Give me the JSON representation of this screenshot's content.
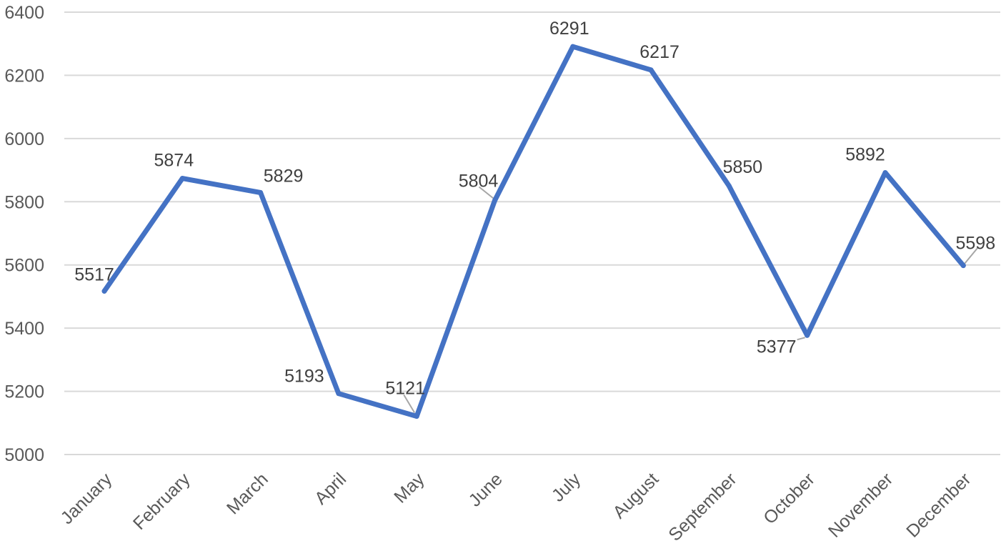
{
  "chart_data": {
    "type": "line",
    "title": "",
    "xlabel": "",
    "ylabel": "",
    "categories": [
      "January",
      "February",
      "March",
      "April",
      "May",
      "June",
      "July",
      "August",
      "September",
      "October",
      "November",
      "December"
    ],
    "series": [
      {
        "values": [
          5517,
          5874,
          5829,
          5193,
          5121,
          5804,
          6291,
          6217,
          5850,
          5377,
          5892,
          5598
        ],
        "color": "#4472c4"
      }
    ],
    "ylim": [
      5000,
      6400
    ],
    "yticks": [
      "5000",
      "5200",
      "5400",
      "5600",
      "5800",
      "6000",
      "6200",
      "6400"
    ],
    "grid": true,
    "legend": "none",
    "data_labels": [
      "5517",
      "5874",
      "5829",
      "5193",
      "5121",
      "5804",
      "6291",
      "6217",
      "5850",
      "5377",
      "5892",
      "5598"
    ]
  }
}
